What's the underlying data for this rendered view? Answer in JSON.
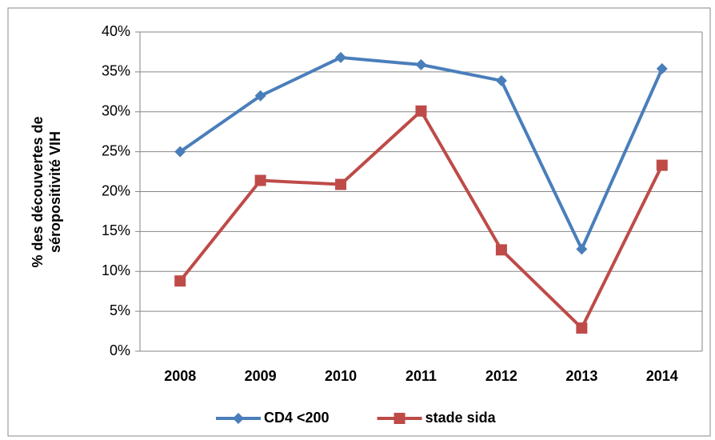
{
  "chart_data": {
    "type": "line",
    "ylabel": [
      "% des découvertes de",
      "séropositivité VIH"
    ],
    "categories": [
      "2008",
      "2009",
      "2010",
      "2011",
      "2012",
      "2013",
      "2014"
    ],
    "series": [
      {
        "name": "CD4 <200",
        "color": "#4a7ebb",
        "marker": "diamond",
        "values": [
          25,
          32,
          36.8,
          35.9,
          33.9,
          12.8,
          35.4
        ]
      },
      {
        "name": "stade sida",
        "color": "#be4b48",
        "marker": "square",
        "values": [
          8.8,
          21.4,
          20.9,
          30.1,
          12.7,
          2.9,
          23.3
        ]
      }
    ],
    "ylim": [
      0,
      40
    ],
    "yticks": [
      {
        "value": 0,
        "label": "0%"
      },
      {
        "value": 5,
        "label": "5%"
      },
      {
        "value": 10,
        "label": "10%"
      },
      {
        "value": 15,
        "label": "15%"
      },
      {
        "value": 20,
        "label": "20%"
      },
      {
        "value": 25,
        "label": "25%"
      },
      {
        "value": 30,
        "label": "30%"
      },
      {
        "value": 35,
        "label": "35%"
      },
      {
        "value": 40,
        "label": "40%"
      }
    ],
    "grid": true,
    "legend": "bottom"
  }
}
